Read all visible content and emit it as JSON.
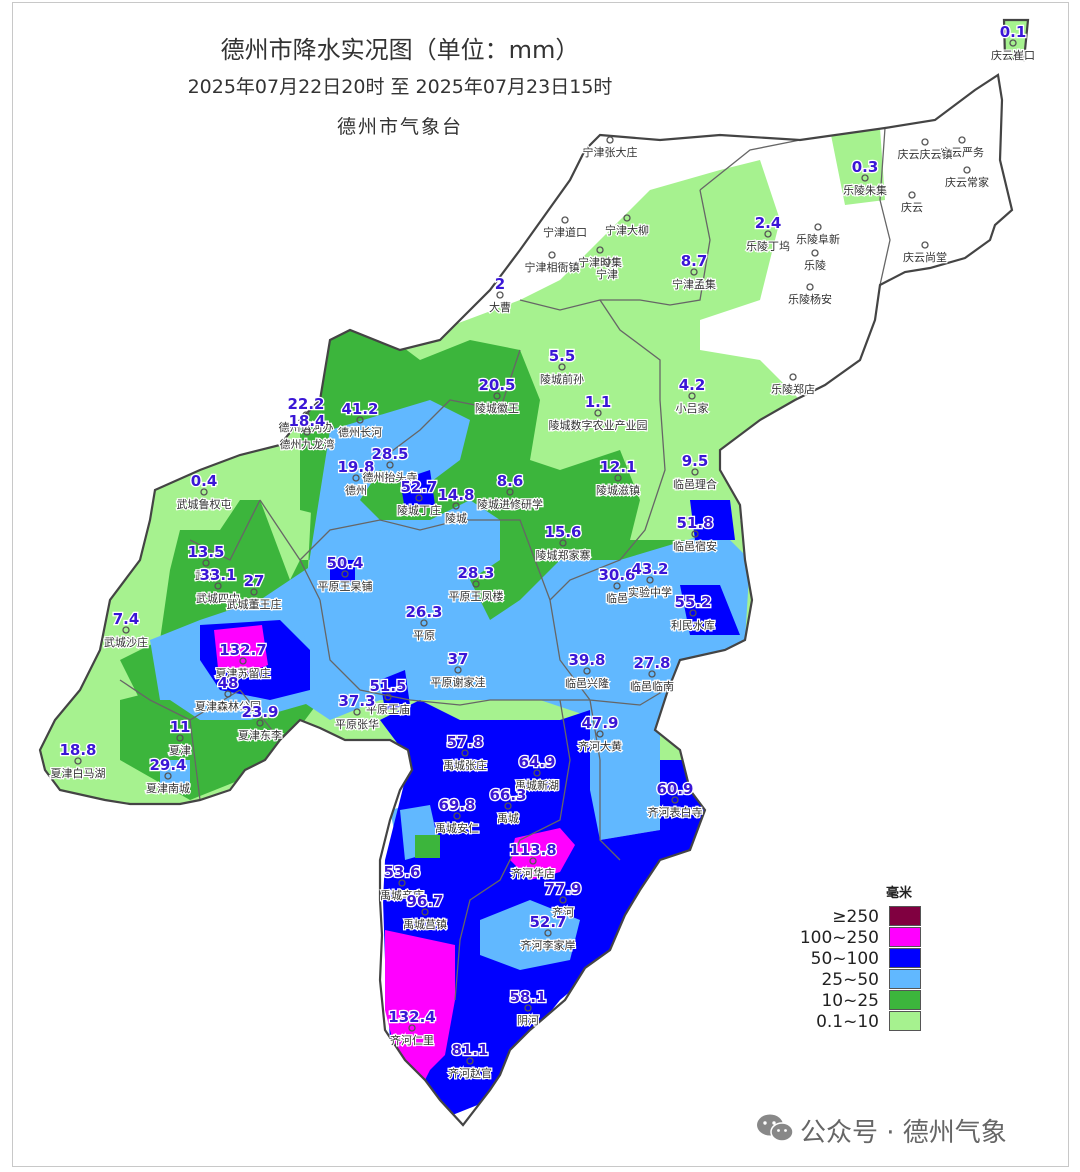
{
  "map": {
    "title": "德州市降水实况图（单位：mm）",
    "subtitle": "2025年07月22日20时  至  2025年07月23日15时",
    "organization": "德州市气象台"
  },
  "stations": [
    {
      "name": "庆云崔口",
      "value": "0.1"
    },
    {
      "name": "庆云严务",
      "value": ""
    },
    {
      "name": "庆云庆云镇",
      "value": ""
    },
    {
      "name": "庆云常家",
      "value": ""
    },
    {
      "name": "庆云",
      "value": ""
    },
    {
      "name": "庆云尚堂",
      "value": ""
    },
    {
      "name": "乐陵朱集",
      "value": "0.3"
    },
    {
      "name": "乐陵丁坞",
      "value": "2.4"
    },
    {
      "name": "乐陵阜新",
      "value": ""
    },
    {
      "name": "乐陵",
      "value": ""
    },
    {
      "name": "乐陵杨安",
      "value": ""
    },
    {
      "name": "乐陵郑店",
      "value": ""
    },
    {
      "name": "宁津张大庄",
      "value": ""
    },
    {
      "name": "宁津道口",
      "value": ""
    },
    {
      "name": "宁津大柳",
      "value": ""
    },
    {
      "name": "宁津时集",
      "value": ""
    },
    {
      "name": "宁津",
      "value": ""
    },
    {
      "name": "宁津相衙镇",
      "value": ""
    },
    {
      "name": "宁津孟集",
      "value": "8.7"
    },
    {
      "name": "大曹",
      "value": "2"
    },
    {
      "name": "陵城前孙",
      "value": "5.5"
    },
    {
      "name": "陵城数字农业产业园",
      "value": "1.1"
    },
    {
      "name": "小吕家",
      "value": "4.2"
    },
    {
      "name": "陵城徽王",
      "value": "20.5"
    },
    {
      "name": "德州运河办",
      "value": "22.2"
    },
    {
      "name": "德州九龙湾",
      "value": "18.4"
    },
    {
      "name": "德州长河",
      "value": "41.2"
    },
    {
      "name": "德州",
      "value": "19.8"
    },
    {
      "name": "德州抬头寺",
      "value": "28.5"
    },
    {
      "name": "陵城丁庄",
      "value": "52.7"
    },
    {
      "name": "陵城",
      "value": "14.8"
    },
    {
      "name": "陵城进修研学",
      "value": "8.6"
    },
    {
      "name": "陵城滋镇",
      "value": "12.1"
    },
    {
      "name": "临邑理合",
      "value": "9.5"
    },
    {
      "name": "武城鲁权屯",
      "value": "0.4"
    },
    {
      "name": "武城",
      "value": "13.5"
    },
    {
      "name": "武城四中",
      "value": "33.1"
    },
    {
      "name": "武城董王庄",
      "value": "27"
    },
    {
      "name": "平原王杲铺",
      "value": "50.4"
    },
    {
      "name": "平原王凤楼",
      "value": "28.3"
    },
    {
      "name": "陵城郑家寨",
      "value": "15.6"
    },
    {
      "name": "临邑宿安",
      "value": "51.8"
    },
    {
      "name": "临邑",
      "value": "30.6"
    },
    {
      "name": "实验中学",
      "value": "43.2"
    },
    {
      "name": "利民水库",
      "value": "55.2"
    },
    {
      "name": "平原",
      "value": "26.3"
    },
    {
      "name": "武城沙庄",
      "value": "7.4"
    },
    {
      "name": "夏津苏留庄",
      "value": "132.7"
    },
    {
      "name": "夏津森林公园",
      "value": "48"
    },
    {
      "name": "平原谢家洼",
      "value": "37"
    },
    {
      "name": "临邑兴隆",
      "value": "39.8"
    },
    {
      "name": "临邑临南",
      "value": "27.8"
    },
    {
      "name": "平原王庙",
      "value": "51.5"
    },
    {
      "name": "平原张华",
      "value": "37.3"
    },
    {
      "name": "夏津东李",
      "value": "23.9"
    },
    {
      "name": "夏津",
      "value": "11"
    },
    {
      "name": "夏津白马湖",
      "value": "18.8"
    },
    {
      "name": "夏津南城",
      "value": "29.4"
    },
    {
      "name": "齐河大黄",
      "value": "47.9"
    },
    {
      "name": "禹城张庄",
      "value": "57.8"
    },
    {
      "name": "禹城新湖",
      "value": "64.9"
    },
    {
      "name": "禹城",
      "value": "66.3"
    },
    {
      "name": "齐河表白寺",
      "value": "60.9"
    },
    {
      "name": "禹城安仁",
      "value": "69.8"
    },
    {
      "name": "齐河华店",
      "value": "113.8"
    },
    {
      "name": "禹城辛店",
      "value": "53.6"
    },
    {
      "name": "禹城莒镇",
      "value": "96.7"
    },
    {
      "name": "齐河",
      "value": "77.9"
    },
    {
      "name": "齐河李家岸",
      "value": "52.7"
    },
    {
      "name": "阴河",
      "value": "58.1"
    },
    {
      "name": "齐河仁里",
      "value": "132.4"
    },
    {
      "name": "齐河赵官",
      "value": "81.1"
    }
  ],
  "legend": {
    "title": "毫米",
    "items": [
      {
        "label": "≥250",
        "color": "#800040"
      },
      {
        "label": "100~250",
        "color": "#ff00ff"
      },
      {
        "label": "50~100",
        "color": "#0000ff"
      },
      {
        "label": "25~50",
        "color": "#61b8ff"
      },
      {
        "label": "10~25",
        "color": "#3cb53c"
      },
      {
        "label": "0.1~10",
        "color": "#a6f28f"
      }
    ]
  },
  "watermark": {
    "text": "公众号 · 德州气象",
    "icon": "wechat-icon"
  }
}
